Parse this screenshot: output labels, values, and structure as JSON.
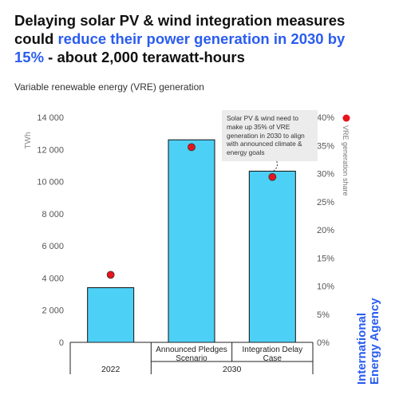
{
  "header": {
    "title_part1": "Delaying solar PV & wind integration measures could ",
    "title_highlight": "reduce their power generation in 2030 by 15%",
    "title_part2": " - about 2,000 terawatt-hours",
    "subtitle": "Variable renewable energy (VRE) generation",
    "highlight_color": "#2a5cf0"
  },
  "brand": {
    "line1": "International",
    "line2": "Energy Agency"
  },
  "callout": {
    "text": "Solar PV & wind need to make up 35% of VRE generation in 2030 to align with announced climate & energy goals"
  },
  "chart_data": {
    "type": "bar",
    "title": "Variable renewable energy (VRE) generation",
    "categories": [
      "2022",
      "Announced Pledges Scenario",
      "Integration Delay Case"
    ],
    "category_labels": [
      [
        ""
      ],
      [
        "Announced Pledges",
        "Scenario"
      ],
      [
        "Integration Delay",
        "Case"
      ]
    ],
    "groups": [
      {
        "label": "2022",
        "categories": [
          "2022"
        ]
      },
      {
        "label": "2030",
        "categories": [
          "Announced Pledges Scenario",
          "Integration Delay Case"
        ]
      }
    ],
    "series": [
      {
        "values": [
          3400,
          12600,
          10650
        ],
        "axis": "left",
        "style": "bar",
        "color": "#4dd0f5"
      },
      {
        "name": "VRE generation share",
        "values": [
          0.12,
          0.347,
          0.294
        ],
        "axis": "right",
        "style": "dot",
        "color": "#e8141c"
      }
    ],
    "y_left": {
      "label": "TWh",
      "min": 0,
      "max": 14000,
      "ticks": [
        0,
        2000,
        4000,
        6000,
        8000,
        10000,
        12000,
        14000
      ],
      "tick_labels": [
        "0",
        "2 000",
        "4 000",
        "6 000",
        "8 000",
        "10 000",
        "12 000",
        "14 000"
      ]
    },
    "y_right": {
      "label": "VRE generation share",
      "min": 0,
      "max": 0.4,
      "ticks": [
        0,
        0.05,
        0.1,
        0.15,
        0.2,
        0.25,
        0.3,
        0.35,
        0.4
      ],
      "tick_labels": [
        "0%",
        "5%",
        "10%",
        "15%",
        "20%",
        "25%",
        "30%",
        "35%",
        "40%"
      ]
    },
    "grid": false,
    "legend": "right-axis marker"
  }
}
